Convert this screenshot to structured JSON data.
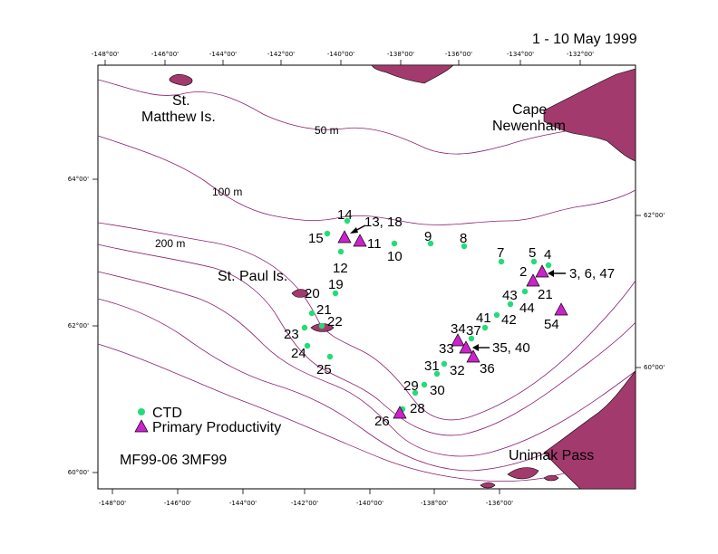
{
  "title": "1 - 10 May 1999",
  "cruise_id": "MF99-06   3MF99",
  "legend": [
    {
      "label": "CTD",
      "symbol": "circle",
      "color": "#22dd77"
    },
    {
      "label": "Primary Productivity",
      "symbol": "triangle",
      "color": "#cc22cc"
    }
  ],
  "places": {
    "st_matthew": [
      "St.",
      "Matthew Is."
    ],
    "cape_newenham": [
      "Cape",
      "Newenham"
    ],
    "st_paul": "St. Paul Is.",
    "unimak": "Unimak Pass"
  },
  "depth_labels": [
    "50 m",
    "100 m",
    "200 m"
  ],
  "ticks": {
    "top": [
      "-148°00'",
      "-146°00'",
      "-144°00'",
      "-142°00'",
      "-140°00'",
      "-138°00'",
      "-136°00'",
      "-134°00'",
      "-132°00'"
    ],
    "bottom": [
      "-148°00'",
      "-146°00'",
      "-144°00'",
      "-142°00'",
      "-140°00'",
      "-138°00'",
      "-136°00'"
    ],
    "left": [
      "64°00'",
      "62°00'",
      "60°00'"
    ],
    "right": [
      "62°00'",
      "60°00'"
    ]
  },
  "station_labels": [
    "14",
    "13, 18",
    "15",
    "11",
    "12",
    "9",
    "8",
    "10",
    "7",
    "5",
    "4",
    "2",
    "3, 6, 47",
    "21",
    "43",
    "44",
    "54",
    "42",
    "41",
    "19",
    "20",
    "21",
    "22",
    "23",
    "24",
    "25",
    "34",
    "37",
    "33",
    "35, 40",
    "31",
    "32",
    "36",
    "29",
    "30",
    "28",
    "26"
  ],
  "icons": {
    "arrow": "arrow-pointer-icon"
  }
}
